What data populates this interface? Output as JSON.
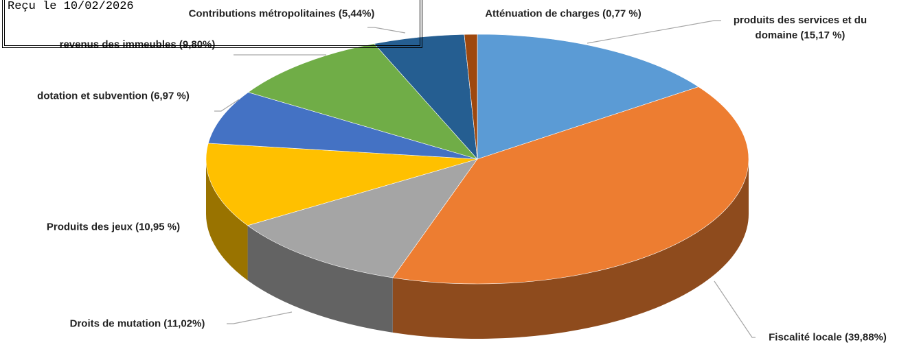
{
  "chart_data": {
    "type": "pie",
    "categories": [
      "produits des services et du domaine (15,17 %)",
      "Fiscalité locale (39,88%)",
      "Droits de mutation (11,02%)",
      "Produits des jeux (10,95 %)",
      "dotation et subvention (6,97 %)",
      "revenus des immeubles (9,80%)",
      "Contributions métropolitaines (5,44%)",
      "Atténuation de charges (0,77 %)"
    ],
    "values": [
      15.17,
      39.88,
      11.02,
      10.95,
      6.97,
      9.8,
      5.44,
      0.77
    ],
    "colors": [
      "#5b9bd5",
      "#ed7d31",
      "#a5a5a5",
      "#ffc000",
      "#4472c4",
      "#70ad47",
      "#255e91",
      "#9e480e"
    ],
    "annotations": [
      "Reçu le 10/02/2026"
    ]
  }
}
